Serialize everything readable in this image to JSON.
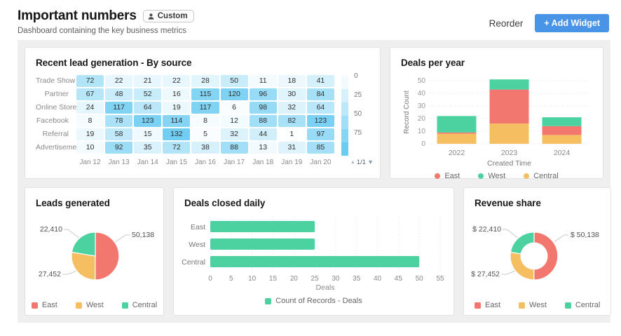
{
  "header": {
    "title": "Important numbers",
    "badge_label": "Custom",
    "subtitle": "Dashboard containing the key business metrics",
    "reorder_label": "Reorder",
    "add_widget_label": "+ Add Widget"
  },
  "colors": {
    "accent_blue": "#4a94e8",
    "east_red": "#f2786f",
    "west_green": "#4bd2a0",
    "central_orange": "#f5bf61",
    "heat_high": "#5ec7f1",
    "heat_low": "#ffffff"
  },
  "chart_data": [
    {
      "type": "heatmap",
      "title": "Recent lead generation - By source",
      "rows": [
        "Trade Show",
        "Partner",
        "Online Store",
        "Facebook",
        "Referral",
        "Advertisement"
      ],
      "columns": [
        "Jan 12",
        "Jan 13",
        "Jan 14",
        "Jan 15",
        "Jan 16",
        "Jan 17",
        "Jan 18",
        "Jan 19",
        "Jan 20"
      ],
      "values": [
        [
          72,
          22,
          21,
          22,
          28,
          50,
          11,
          18,
          41
        ],
        [
          67,
          48,
          52,
          16,
          115,
          120,
          96,
          30,
          84
        ],
        [
          24,
          117,
          64,
          19,
          117,
          6,
          98,
          32,
          64
        ],
        [
          8,
          78,
          123,
          114,
          8,
          12,
          88,
          82,
          123
        ],
        [
          19,
          58,
          15,
          132,
          5,
          32,
          44,
          1,
          97
        ],
        [
          10,
          92,
          35,
          72,
          38,
          88,
          13,
          31,
          85
        ]
      ],
      "scale_ticks": [
        "0",
        "25",
        "50",
        "75"
      ],
      "scale_max": 150,
      "pagination": "1/1"
    },
    {
      "type": "bar",
      "stacked": true,
      "title": "Deals per year",
      "categories": [
        "2022",
        "2023",
        "2024"
      ],
      "series": [
        {
          "name": "Central",
          "color": "#f5bf61",
          "values": [
            8,
            16,
            7
          ]
        },
        {
          "name": "East",
          "color": "#f2786f",
          "values": [
            1,
            27,
            7
          ]
        },
        {
          "name": "West",
          "color": "#4bd2a0",
          "values": [
            13,
            8,
            7
          ]
        }
      ],
      "legend": [
        {
          "label": "East",
          "color": "#f2786f"
        },
        {
          "label": "West",
          "color": "#4bd2a0"
        },
        {
          "label": "Central",
          "color": "#f5bf61"
        }
      ],
      "xlabel": "Created Time",
      "ylabel": "Record Count",
      "yticks": [
        0,
        10,
        20,
        30,
        40,
        50
      ],
      "ylim": [
        0,
        50
      ]
    },
    {
      "type": "pie",
      "title": "Leads generated",
      "slices": [
        {
          "name": "East",
          "value": 50138,
          "label": "50,138",
          "color": "#f2786f"
        },
        {
          "name": "West",
          "value": 27452,
          "label": "27,452",
          "color": "#f5bf61"
        },
        {
          "name": "Central",
          "value": 22410,
          "label": "22,410",
          "color": "#4bd2a0"
        }
      ],
      "legend": [
        {
          "label": "East",
          "color": "#f2786f"
        },
        {
          "label": "West",
          "color": "#f5bf61"
        },
        {
          "label": "Central",
          "color": "#4bd2a0"
        }
      ]
    },
    {
      "type": "hbar",
      "title": "Deals closed daily",
      "categories": [
        "East",
        "West",
        "Central"
      ],
      "values": [
        25,
        25,
        50
      ],
      "color": "#4bd2a0",
      "xticks": [
        0,
        5,
        10,
        15,
        20,
        25,
        30,
        35,
        40,
        45,
        50,
        55
      ],
      "xlim": [
        0,
        55
      ],
      "xlabel": "Deals",
      "legend": [
        {
          "label": "Count of Records - Deals",
          "color": "#4bd2a0"
        }
      ]
    },
    {
      "type": "donut",
      "title": "Revenue share",
      "slices": [
        {
          "name": "East",
          "value": 50138,
          "label": "$ 50,138",
          "color": "#f2786f"
        },
        {
          "name": "West",
          "value": 27452,
          "label": "$ 27,452",
          "color": "#f5bf61"
        },
        {
          "name": "Central",
          "value": 22410,
          "label": "$ 22,410",
          "color": "#4bd2a0"
        }
      ],
      "legend": [
        {
          "label": "East",
          "color": "#f2786f"
        },
        {
          "label": "West",
          "color": "#f5bf61"
        },
        {
          "label": "Central",
          "color": "#4bd2a0"
        }
      ]
    }
  ]
}
